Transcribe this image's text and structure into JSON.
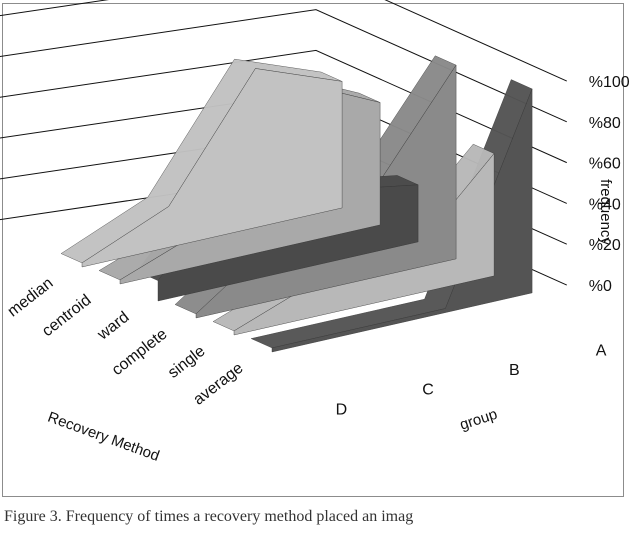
{
  "caption": "Figure 3.   Frequency of times a recovery method placed an imag",
  "chart_data": {
    "type": "area",
    "subtype": "3d-area",
    "title": "",
    "ylabel": "frequency",
    "xlabel": "group",
    "zlabel": "Recovery Method",
    "categories": [
      "D",
      "C",
      "B",
      "A"
    ],
    "y_ticks": [
      "%0",
      "%20",
      "%40",
      "%60",
      "%80",
      "%100"
    ],
    "ylim": [
      0,
      100
    ],
    "grid": true,
    "series": [
      {
        "name": "median",
        "values": [
          2,
          20,
          78,
          62
        ],
        "color": "#c2c2c2"
      },
      {
        "name": "centroid",
        "values": [
          2,
          18,
          80,
          60
        ],
        "color": "#a9a9a9"
      },
      {
        "name": "ward",
        "values": [
          10,
          58,
          35,
          28
        ],
        "color": "#4a4a4a"
      },
      {
        "name": "complete",
        "values": [
          2,
          32,
          40,
          95
        ],
        "color": "#8a8a8a"
      },
      {
        "name": "single",
        "values": [
          2,
          18,
          18,
          60
        ],
        "color": "#b8b8b8"
      },
      {
        "name": "average",
        "values": [
          2,
          2,
          2,
          100
        ],
        "color": "#545454"
      }
    ]
  }
}
